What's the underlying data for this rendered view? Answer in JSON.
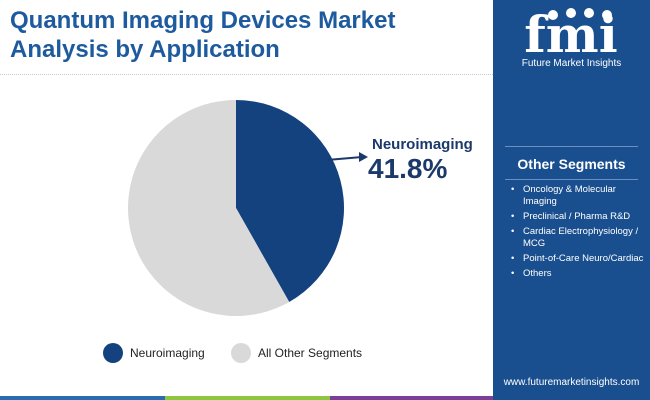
{
  "header": {
    "title_line1": "Quantum Imaging Devices Market",
    "title_line2": "Analysis by Application"
  },
  "brand": {
    "logo_letters": "fmi",
    "logo_name": "Future Market Insights",
    "url": "www.futuremarketinsights.com"
  },
  "colors": {
    "title": "#1d5a9e",
    "panel": "#1a4f8f",
    "neuroimaging": "#13427e",
    "other": "#d9d9d9",
    "callout": "#1b3a6b"
  },
  "other_segments": {
    "heading": "Other Segments",
    "items": [
      "Oncology & Molecular Imaging",
      "Preclinical / Pharma R&D",
      "Cardiac Electrophysiology / MCG",
      "Point-of-Care Neuro/Cardiac",
      "Others"
    ]
  },
  "callout": {
    "label": "Neuroimaging",
    "value": "41.8%"
  },
  "chart_data": {
    "type": "pie",
    "title": "Quantum Imaging Devices Market Analysis by Application",
    "slices": [
      {
        "label": "Neuroimaging",
        "value": 41.8,
        "color": "#13427e"
      },
      {
        "label": "All Other Segments",
        "value": 58.2,
        "color": "#d9d9d9"
      }
    ],
    "start_angle": "12 o'clock, clockwise",
    "legend": {
      "placement": "bottom",
      "entries": [
        "Neuroimaging",
        "All Other Segments"
      ]
    }
  }
}
